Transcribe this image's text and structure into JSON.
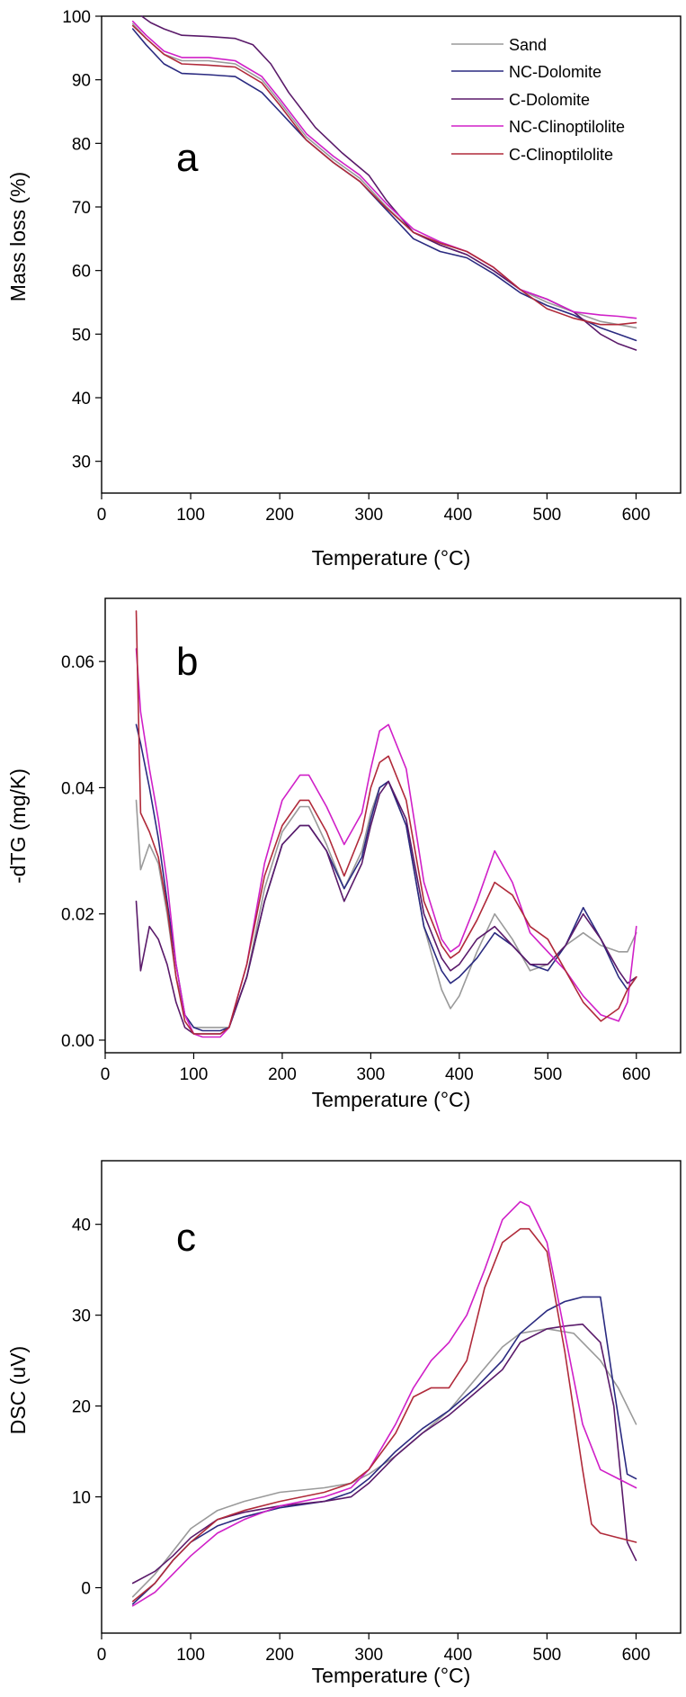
{
  "legend": [
    "Sand",
    "NC-Dolomite",
    "C-Dolomite",
    "NC-Clinoptilolite",
    "C-Clinoptilolite"
  ],
  "colors": {
    "Sand": "#9a9a9a",
    "NC-Dolomite": "#2a2a80",
    "C-Dolomite": "#5a1a6a",
    "NC-Clinoptilolite": "#d020c8",
    "C-Clinoptilolite": "#b02a3a"
  },
  "chart_data": [
    {
      "type": "line",
      "panel": "a",
      "xlabel": "Temperature (°C)",
      "ylabel": "Mass loss (%)",
      "xlim": [
        0,
        650
      ],
      "ylim": [
        25,
        100
      ],
      "xticks": [
        0,
        100,
        200,
        300,
        400,
        500,
        600
      ],
      "yticks": [
        30,
        40,
        50,
        60,
        70,
        80,
        90,
        100
      ],
      "xtick_labels": [
        "0",
        "100",
        "200",
        "300",
        "400",
        "500",
        "600"
      ],
      "ytick_labels": [
        "30",
        "40",
        "50",
        "60",
        "70",
        "80",
        "90",
        "100"
      ],
      "series": [
        {
          "name": "Sand",
          "x": [
            35,
            50,
            70,
            90,
            120,
            150,
            180,
            200,
            230,
            260,
            290,
            320,
            350,
            380,
            410,
            440,
            470,
            500,
            530,
            560,
            580,
            600
          ],
          "values": [
            98.8,
            96.5,
            94.0,
            93.0,
            93.0,
            92.5,
            90.0,
            86.5,
            81.0,
            77.5,
            74.5,
            70.0,
            66.0,
            64.0,
            62.5,
            60.0,
            57.0,
            55.0,
            53.5,
            52.0,
            51.5,
            51.0
          ]
        },
        {
          "name": "NC-Dolomite",
          "x": [
            35,
            50,
            70,
            90,
            120,
            150,
            180,
            200,
            230,
            260,
            290,
            320,
            350,
            380,
            410,
            440,
            470,
            500,
            530,
            560,
            580,
            600
          ],
          "values": [
            98.0,
            95.5,
            92.5,
            91.0,
            90.8,
            90.5,
            88.0,
            85.0,
            80.5,
            77.0,
            74.0,
            69.5,
            65.0,
            63.0,
            62.0,
            59.5,
            56.5,
            54.5,
            53.0,
            51.0,
            50.0,
            49.0
          ]
        },
        {
          "name": "C-Dolomite",
          "x": [
            45,
            55,
            70,
            90,
            120,
            150,
            170,
            190,
            210,
            240,
            270,
            300,
            320,
            350,
            380,
            410,
            440,
            470,
            500,
            530,
            560,
            580,
            600
          ],
          "values": [
            100.0,
            99.0,
            98.0,
            97.0,
            96.8,
            96.5,
            95.5,
            92.5,
            88.0,
            82.5,
            78.5,
            75.0,
            71.0,
            66.0,
            64.0,
            62.5,
            60.0,
            57.0,
            55.5,
            53.5,
            50.0,
            48.5,
            47.5
          ]
        },
        {
          "name": "NC-Clinoptilolite",
          "x": [
            35,
            50,
            70,
            90,
            120,
            150,
            180,
            200,
            230,
            260,
            290,
            320,
            350,
            380,
            410,
            440,
            470,
            500,
            530,
            560,
            580,
            600
          ],
          "values": [
            99.2,
            97.0,
            94.5,
            93.5,
            93.5,
            93.0,
            90.5,
            87.0,
            81.5,
            78.0,
            75.0,
            70.5,
            66.5,
            64.5,
            63.0,
            60.5,
            57.0,
            55.5,
            53.5,
            53.0,
            52.8,
            52.5
          ]
        },
        {
          "name": "C-Clinoptilolite",
          "x": [
            35,
            50,
            70,
            90,
            120,
            150,
            180,
            200,
            230,
            260,
            290,
            320,
            350,
            380,
            410,
            440,
            470,
            500,
            530,
            560,
            580,
            600
          ],
          "values": [
            98.5,
            96.5,
            94.0,
            92.5,
            92.3,
            92.0,
            89.5,
            86.0,
            80.5,
            77.0,
            74.0,
            69.8,
            66.0,
            64.3,
            63.0,
            60.5,
            57.0,
            54.0,
            52.5,
            51.5,
            51.5,
            51.8
          ]
        }
      ]
    },
    {
      "type": "line",
      "panel": "b",
      "xlabel": "Temperature (°C)",
      "ylabel": "-dTG (mg/K)",
      "xlim": [
        0,
        650
      ],
      "ylim": [
        -0.002,
        0.07
      ],
      "xticks": [
        0,
        100,
        200,
        300,
        400,
        500,
        600
      ],
      "yticks": [
        0,
        0.02,
        0.04,
        0.06
      ],
      "xtick_labels": [
        "0",
        "100",
        "200",
        "300",
        "400",
        "500",
        "600"
      ],
      "ytick_labels": [
        "0.00",
        "0.02",
        "0.04",
        "0.06"
      ],
      "series": [
        {
          "name": "Sand",
          "x": [
            35,
            40,
            50,
            60,
            70,
            80,
            90,
            100,
            110,
            120,
            130,
            140,
            160,
            180,
            200,
            220,
            230,
            250,
            270,
            290,
            300,
            310,
            320,
            340,
            360,
            380,
            390,
            400,
            420,
            440,
            460,
            480,
            500,
            520,
            540,
            560,
            580,
            590,
            600
          ],
          "values": [
            0.038,
            0.027,
            0.031,
            0.028,
            0.02,
            0.01,
            0.004,
            0.002,
            0.002,
            0.002,
            0.002,
            0.002,
            0.01,
            0.024,
            0.033,
            0.037,
            0.037,
            0.031,
            0.024,
            0.03,
            0.036,
            0.04,
            0.041,
            0.034,
            0.018,
            0.008,
            0.005,
            0.007,
            0.014,
            0.02,
            0.016,
            0.011,
            0.012,
            0.015,
            0.017,
            0.015,
            0.014,
            0.014,
            0.017
          ]
        },
        {
          "name": "NC-Dolomite",
          "x": [
            35,
            40,
            50,
            60,
            70,
            80,
            90,
            100,
            110,
            120,
            130,
            140,
            160,
            180,
            200,
            220,
            230,
            250,
            270,
            290,
            300,
            310,
            320,
            340,
            360,
            380,
            390,
            400,
            420,
            440,
            460,
            480,
            500,
            520,
            540,
            560,
            580,
            590,
            600
          ],
          "values": [
            0.05,
            0.047,
            0.04,
            0.032,
            0.022,
            0.012,
            0.004,
            0.002,
            0.0015,
            0.0015,
            0.0015,
            0.002,
            0.01,
            0.022,
            0.031,
            0.034,
            0.034,
            0.03,
            0.024,
            0.029,
            0.035,
            0.04,
            0.041,
            0.034,
            0.018,
            0.011,
            0.009,
            0.01,
            0.013,
            0.017,
            0.015,
            0.012,
            0.011,
            0.015,
            0.021,
            0.016,
            0.01,
            0.008,
            0.01
          ]
        },
        {
          "name": "C-Dolomite",
          "x": [
            35,
            40,
            50,
            60,
            70,
            80,
            90,
            100,
            110,
            120,
            130,
            140,
            160,
            180,
            200,
            220,
            230,
            250,
            270,
            290,
            300,
            310,
            320,
            340,
            360,
            380,
            390,
            400,
            420,
            440,
            460,
            480,
            500,
            520,
            540,
            560,
            580,
            590,
            600
          ],
          "values": [
            0.022,
            0.011,
            0.018,
            0.016,
            0.012,
            0.006,
            0.002,
            0.001,
            0.001,
            0.001,
            0.001,
            0.002,
            0.01,
            0.022,
            0.031,
            0.034,
            0.034,
            0.03,
            0.022,
            0.028,
            0.034,
            0.039,
            0.041,
            0.035,
            0.02,
            0.013,
            0.011,
            0.012,
            0.016,
            0.018,
            0.015,
            0.012,
            0.012,
            0.015,
            0.02,
            0.016,
            0.011,
            0.009,
            0.01
          ]
        },
        {
          "name": "NC-Clinoptilolite",
          "x": [
            35,
            40,
            50,
            60,
            70,
            80,
            90,
            100,
            110,
            120,
            130,
            140,
            160,
            180,
            200,
            220,
            230,
            250,
            270,
            290,
            300,
            310,
            320,
            340,
            360,
            380,
            390,
            400,
            420,
            440,
            460,
            480,
            500,
            520,
            540,
            560,
            580,
            590,
            600
          ],
          "values": [
            0.062,
            0.052,
            0.043,
            0.035,
            0.025,
            0.012,
            0.004,
            0.001,
            0.0005,
            0.0005,
            0.0005,
            0.002,
            0.012,
            0.028,
            0.038,
            0.042,
            0.042,
            0.037,
            0.031,
            0.036,
            0.043,
            0.049,
            0.05,
            0.043,
            0.025,
            0.016,
            0.014,
            0.015,
            0.022,
            0.03,
            0.025,
            0.017,
            0.014,
            0.011,
            0.007,
            0.004,
            0.003,
            0.006,
            0.018
          ]
        },
        {
          "name": "C-Clinoptilolite",
          "x": [
            35,
            40,
            50,
            60,
            70,
            80,
            90,
            100,
            110,
            120,
            130,
            140,
            160,
            180,
            200,
            220,
            230,
            250,
            270,
            290,
            300,
            310,
            320,
            340,
            360,
            380,
            390,
            400,
            420,
            440,
            460,
            480,
            500,
            520,
            540,
            560,
            580,
            590,
            600
          ],
          "values": [
            0.068,
            0.036,
            0.033,
            0.029,
            0.021,
            0.01,
            0.003,
            0.001,
            0.001,
            0.001,
            0.001,
            0.002,
            0.012,
            0.026,
            0.034,
            0.038,
            0.038,
            0.033,
            0.026,
            0.033,
            0.04,
            0.044,
            0.045,
            0.038,
            0.022,
            0.015,
            0.013,
            0.014,
            0.019,
            0.025,
            0.023,
            0.018,
            0.016,
            0.011,
            0.006,
            0.003,
            0.005,
            0.008,
            0.01
          ]
        }
      ]
    },
    {
      "type": "line",
      "panel": "c",
      "xlabel": "Temperature (°C)",
      "ylabel": "DSC (uV)",
      "xlim": [
        0,
        650
      ],
      "ylim": [
        -5,
        47
      ],
      "xticks": [
        0,
        100,
        200,
        300,
        400,
        500,
        600
      ],
      "yticks": [
        0,
        10,
        20,
        30,
        40
      ],
      "xtick_labels": [
        "0",
        "100",
        "200",
        "300",
        "400",
        "500",
        "600"
      ],
      "ytick_labels": [
        "0",
        "10",
        "20",
        "30",
        "40"
      ],
      "series": [
        {
          "name": "Sand",
          "x": [
            35,
            60,
            80,
            100,
            130,
            160,
            200,
            250,
            280,
            300,
            330,
            360,
            390,
            420,
            450,
            470,
            500,
            530,
            560,
            580,
            600
          ],
          "values": [
            -1.0,
            1.5,
            4.0,
            6.5,
            8.5,
            9.5,
            10.5,
            11.0,
            11.5,
            12.5,
            14.5,
            17.0,
            19.5,
            23.0,
            26.5,
            28.0,
            28.5,
            28.0,
            25.0,
            22.0,
            18.0
          ]
        },
        {
          "name": "NC-Dolomite",
          "x": [
            35,
            60,
            80,
            100,
            130,
            160,
            200,
            250,
            280,
            300,
            330,
            360,
            390,
            420,
            450,
            470,
            500,
            520,
            540,
            560,
            575,
            590,
            600
          ],
          "values": [
            -1.8,
            0.5,
            3.0,
            5.0,
            6.8,
            7.8,
            8.8,
            9.5,
            10.5,
            12.0,
            15.0,
            17.5,
            19.5,
            22.0,
            25.0,
            28.0,
            30.5,
            31.5,
            32.0,
            32.0,
            22.0,
            12.5,
            12.0
          ]
        },
        {
          "name": "C-Dolomite",
          "x": [
            35,
            60,
            80,
            100,
            130,
            160,
            200,
            250,
            280,
            300,
            330,
            360,
            390,
            420,
            450,
            470,
            500,
            520,
            540,
            560,
            575,
            590,
            600
          ],
          "values": [
            0.5,
            1.8,
            3.5,
            5.5,
            7.5,
            8.3,
            9.0,
            9.5,
            10.0,
            11.5,
            14.5,
            17.0,
            19.0,
            21.5,
            24.0,
            27.0,
            28.5,
            28.8,
            29.0,
            27.0,
            20.0,
            5.0,
            3.0
          ]
        },
        {
          "name": "NC-Clinoptilolite",
          "x": [
            35,
            60,
            80,
            100,
            130,
            160,
            200,
            250,
            280,
            300,
            330,
            350,
            370,
            390,
            410,
            430,
            450,
            470,
            480,
            500,
            520,
            540,
            560,
            580,
            600
          ],
          "values": [
            -2.0,
            -0.5,
            1.5,
            3.5,
            6.0,
            7.5,
            9.0,
            10.0,
            11.0,
            13.0,
            18.0,
            22.0,
            25.0,
            27.0,
            30.0,
            35.0,
            40.5,
            42.5,
            42.0,
            38.0,
            28.0,
            18.0,
            13.0,
            12.0,
            11.0
          ]
        },
        {
          "name": "C-Clinoptilolite",
          "x": [
            35,
            60,
            80,
            100,
            130,
            160,
            200,
            250,
            280,
            300,
            330,
            350,
            370,
            390,
            410,
            430,
            450,
            470,
            480,
            500,
            520,
            540,
            550,
            560,
            580,
            600
          ],
          "values": [
            -1.5,
            0.5,
            3.0,
            5.0,
            7.5,
            8.5,
            9.5,
            10.5,
            11.5,
            13.0,
            17.0,
            21.0,
            22.0,
            22.0,
            25.0,
            33.0,
            38.0,
            39.5,
            39.5,
            37.0,
            26.0,
            13.0,
            7.0,
            6.0,
            5.5,
            5.0
          ]
        }
      ]
    }
  ]
}
